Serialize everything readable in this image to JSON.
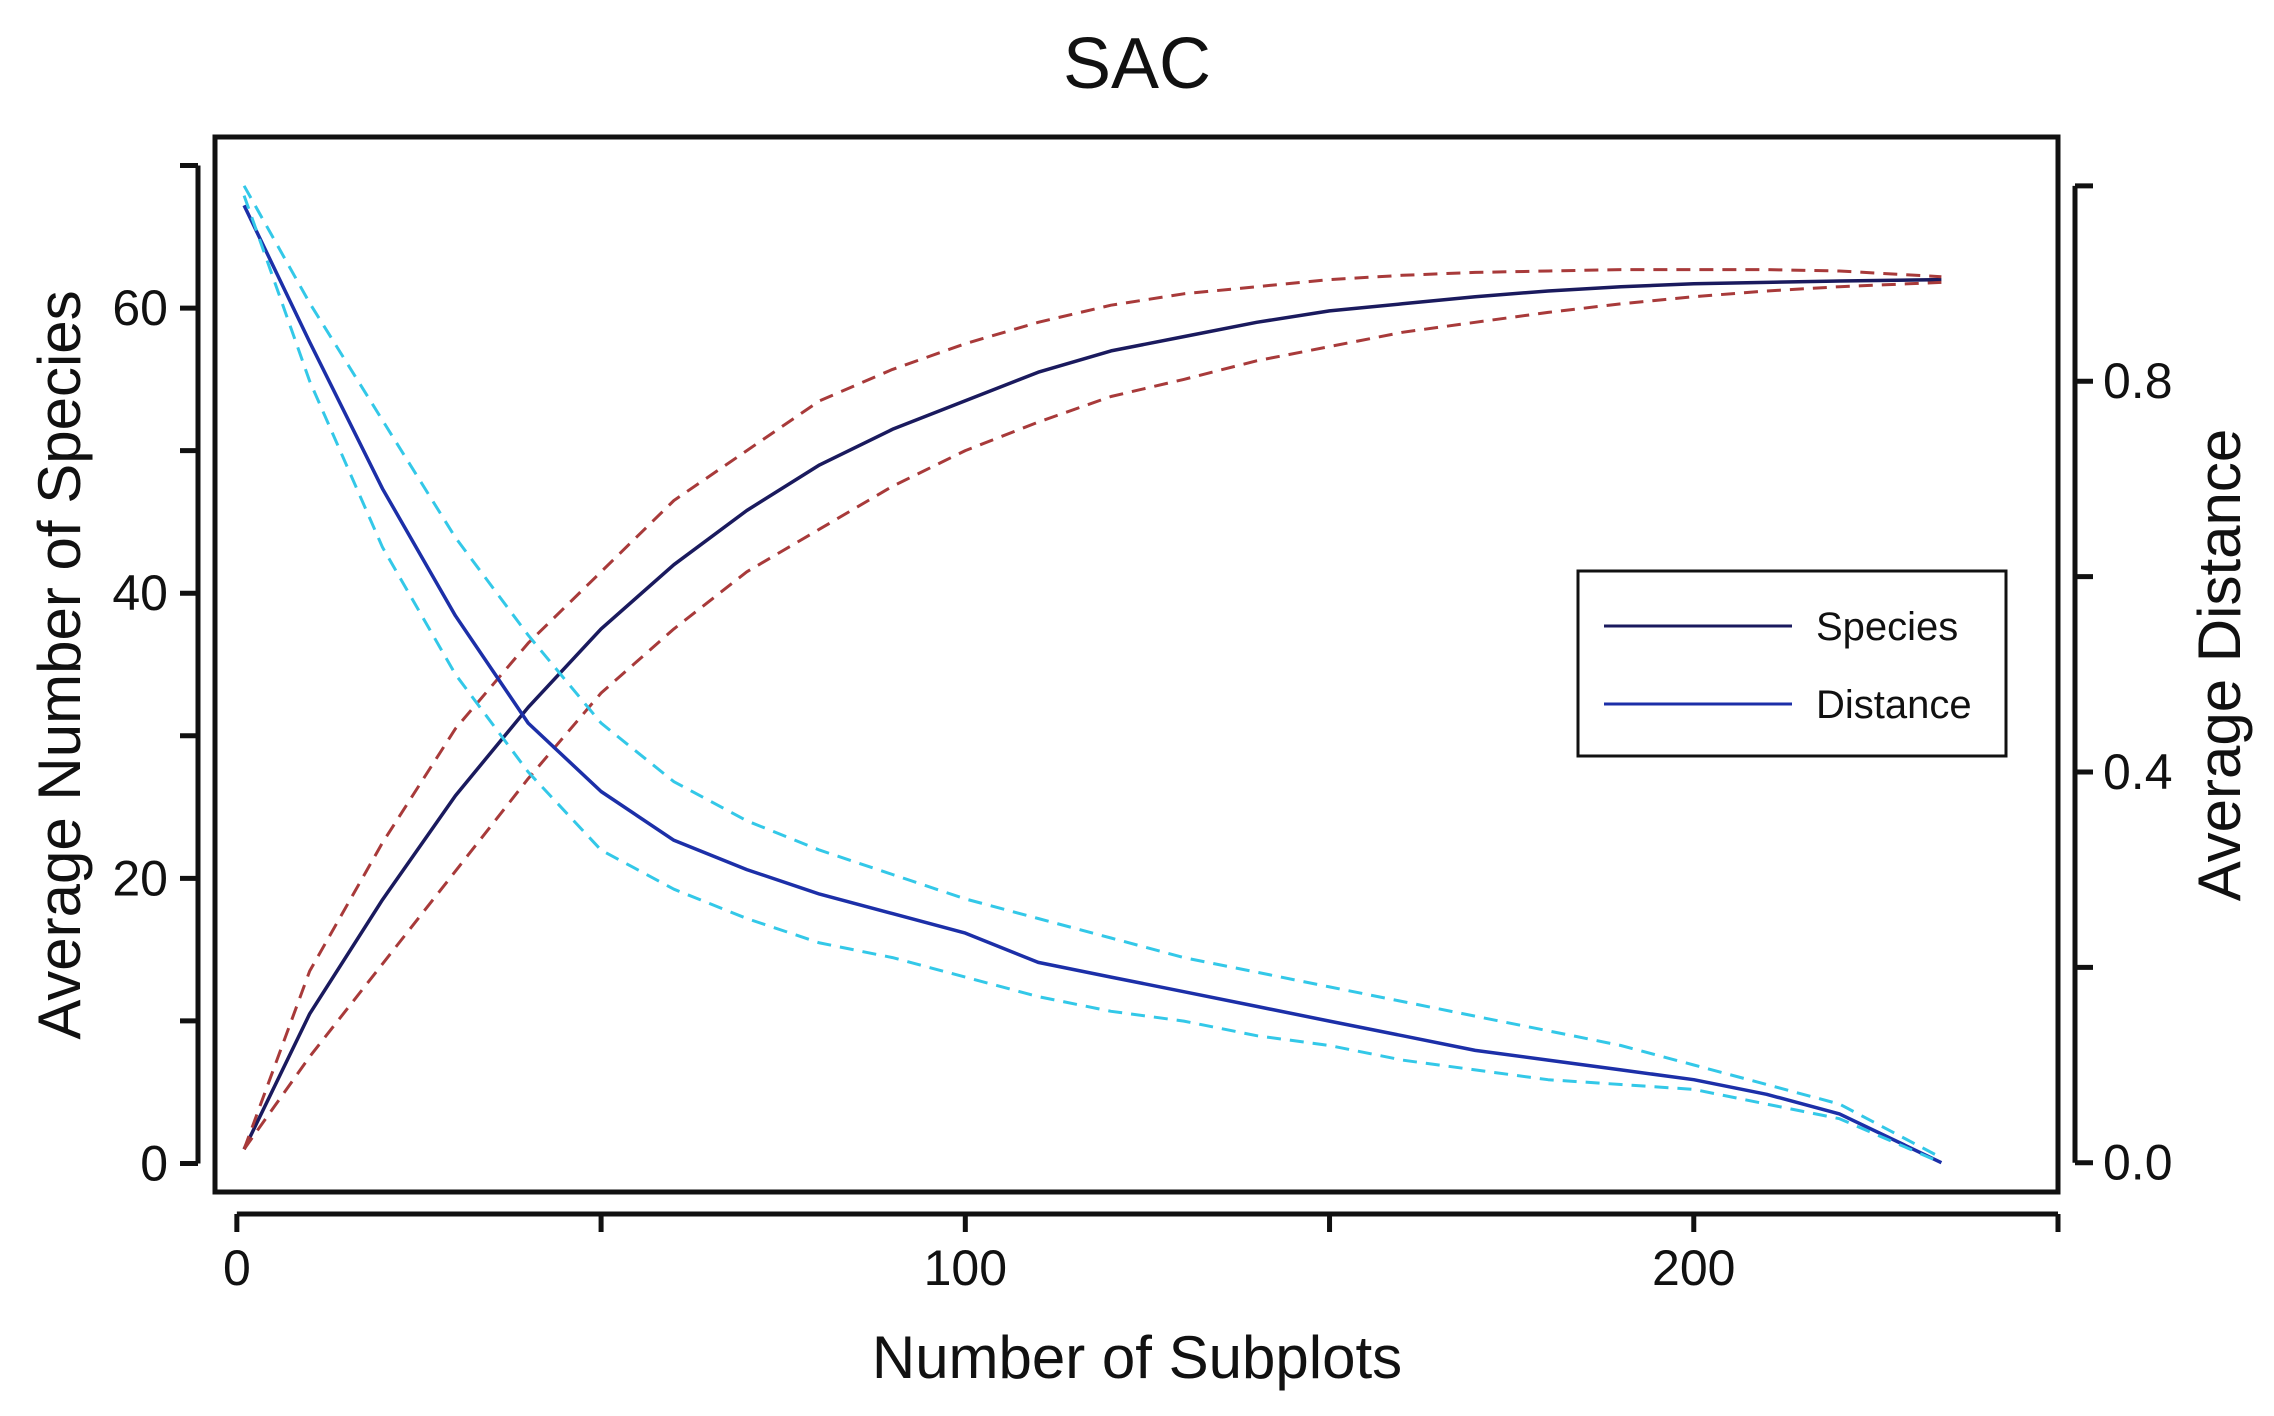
{
  "chart_data": {
    "type": "line",
    "title": "SAC",
    "xlabel": "Number of Subplots",
    "ylabel": "Average Number of Species",
    "y2label": "Average Distance",
    "xlim": [
      -3,
      250
    ],
    "ylim": [
      -2,
      72
    ],
    "y2lim": [
      -0.03,
      1.05
    ],
    "xticks": [
      0,
      50,
      100,
      150,
      200,
      250
    ],
    "xtick_labels": [
      "0",
      "",
      "100",
      "",
      "200",
      ""
    ],
    "yticks": [
      0,
      10,
      20,
      30,
      40,
      50,
      60,
      70
    ],
    "ytick_labels": [
      "0",
      "",
      "20",
      "",
      "40",
      "",
      "60",
      ""
    ],
    "y2ticks": [
      0.0,
      0.2,
      0.4,
      0.6,
      0.8,
      1.0
    ],
    "y2tick_labels": [
      "0.0",
      "",
      "0.4",
      "",
      "0.8",
      ""
    ],
    "grid": false,
    "legend_position": "right",
    "legend": [
      "Species",
      "Distance"
    ],
    "x": [
      1,
      10,
      20,
      30,
      40,
      50,
      60,
      70,
      80,
      90,
      100,
      110,
      120,
      130,
      140,
      150,
      160,
      170,
      180,
      190,
      200,
      210,
      220,
      234
    ],
    "series": [
      {
        "name": "Species",
        "axis": "left",
        "color": "#1a1a5e",
        "values": [
          1,
          10.5,
          18.5,
          25.8,
          32,
          37.5,
          42,
          45.8,
          49,
          51.5,
          53.5,
          55.5,
          57,
          58,
          59,
          59.8,
          60.3,
          60.8,
          61.2,
          61.5,
          61.7,
          61.8,
          61.9,
          62
        ]
      },
      {
        "name": "Species upper bound",
        "axis": "left",
        "style": "dashed",
        "color": "#a83a3a",
        "values": [
          1,
          13.5,
          22.5,
          30.5,
          36.5,
          41.5,
          46.5,
          50,
          53.5,
          55.7,
          57.5,
          59,
          60.2,
          61,
          61.5,
          62,
          62.3,
          62.5,
          62.6,
          62.7,
          62.7,
          62.7,
          62.6,
          62.2
        ]
      },
      {
        "name": "Species lower bound",
        "axis": "left",
        "style": "dashed",
        "color": "#a83a3a",
        "values": [
          1,
          7.5,
          14,
          20.5,
          27,
          33,
          37.5,
          41.5,
          44.5,
          47.5,
          50,
          52,
          53.8,
          55,
          56.3,
          57.3,
          58.3,
          59,
          59.7,
          60.3,
          60.8,
          61.2,
          61.5,
          61.8
        ]
      },
      {
        "name": "Distance",
        "axis": "right",
        "color": "#1c2fa8",
        "values": [
          0.98,
          0.84,
          0.69,
          0.56,
          0.45,
          0.38,
          0.33,
          0.3,
          0.275,
          0.255,
          0.235,
          0.205,
          0.19,
          0.175,
          0.16,
          0.145,
          0.13,
          0.115,
          0.105,
          0.095,
          0.085,
          0.07,
          0.05,
          0.0
        ]
      },
      {
        "name": "Distance upper bound",
        "axis": "right",
        "style": "dashed",
        "color": "#33c8e8",
        "values": [
          1.0,
          0.88,
          0.76,
          0.64,
          0.54,
          0.45,
          0.39,
          0.35,
          0.32,
          0.295,
          0.27,
          0.25,
          0.23,
          0.21,
          0.195,
          0.18,
          0.165,
          0.15,
          0.135,
          0.12,
          0.1,
          0.08,
          0.06,
          0.005
        ]
      },
      {
        "name": "Distance lower bound",
        "axis": "right",
        "style": "dashed",
        "color": "#33c8e8",
        "values": [
          0.99,
          0.8,
          0.63,
          0.5,
          0.4,
          0.32,
          0.28,
          0.25,
          0.225,
          0.21,
          0.19,
          0.17,
          0.155,
          0.145,
          0.13,
          0.12,
          0.105,
          0.095,
          0.085,
          0.08,
          0.075,
          0.06,
          0.045,
          0.0
        ]
      }
    ]
  }
}
